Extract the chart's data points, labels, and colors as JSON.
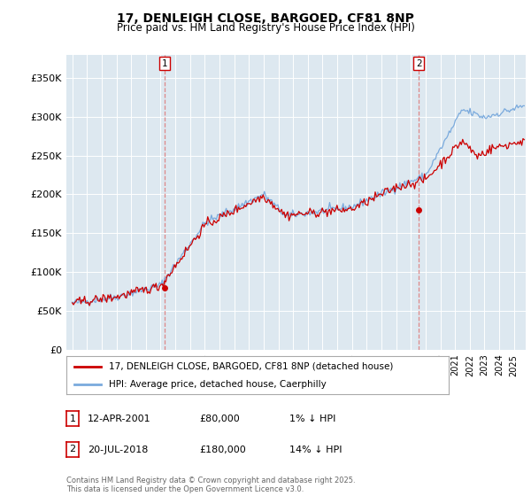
{
  "title1": "17, DENLEIGH CLOSE, BARGOED, CF81 8NP",
  "title2": "Price paid vs. HM Land Registry's House Price Index (HPI)",
  "legend_line1": "17, DENLEIGH CLOSE, BARGOED, CF81 8NP (detached house)",
  "legend_line2": "HPI: Average price, detached house, Caerphilly",
  "annotation1_date": "12-APR-2001",
  "annotation1_price": "£80,000",
  "annotation1_hpi": "1% ↓ HPI",
  "annotation2_date": "20-JUL-2018",
  "annotation2_price": "£180,000",
  "annotation2_hpi": "14% ↓ HPI",
  "footnote": "Contains HM Land Registry data © Crown copyright and database right 2025.\nThis data is licensed under the Open Government Licence v3.0.",
  "line1_color": "#cc0000",
  "line2_color": "#7aaadd",
  "vline_color": "#dd8888",
  "background_color": "#ffffff",
  "plot_bg_color": "#dde8f0",
  "grid_color": "#ffffff",
  "ylim": [
    0,
    380000
  ],
  "yticks": [
    0,
    50000,
    100000,
    150000,
    200000,
    250000,
    300000,
    350000
  ],
  "ytick_labels": [
    "£0",
    "£50K",
    "£100K",
    "£150K",
    "£200K",
    "£250K",
    "£300K",
    "£350K"
  ],
  "sale1_x": 2001.28,
  "sale1_y": 80000,
  "sale2_x": 2018.54,
  "sale2_y": 180000,
  "xmin": 1994.6,
  "xmax": 2025.8
}
